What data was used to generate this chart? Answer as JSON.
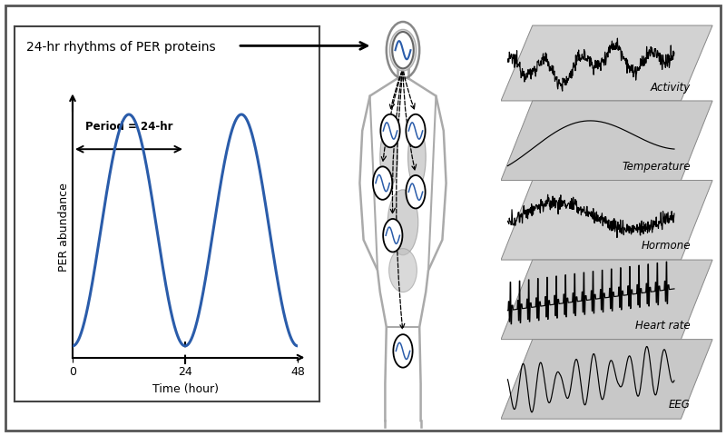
{
  "background_color": "#ffffff",
  "outer_border_color": "#555555",
  "title_text": "24-hr rhythms of PER proteins",
  "title_fontsize": 10,
  "xlabel": "Time (hour)",
  "ylabel": "PER abundance",
  "period_label": "Period = 24-hr",
  "sine_color": "#2a5caa",
  "sine_linewidth": 2.2,
  "panel_labels": [
    "Activity",
    "Temperature",
    "Hormone",
    "Heart rate",
    "EEG"
  ],
  "panel_color": "#cccccc",
  "panel_edge_color": "#999999"
}
